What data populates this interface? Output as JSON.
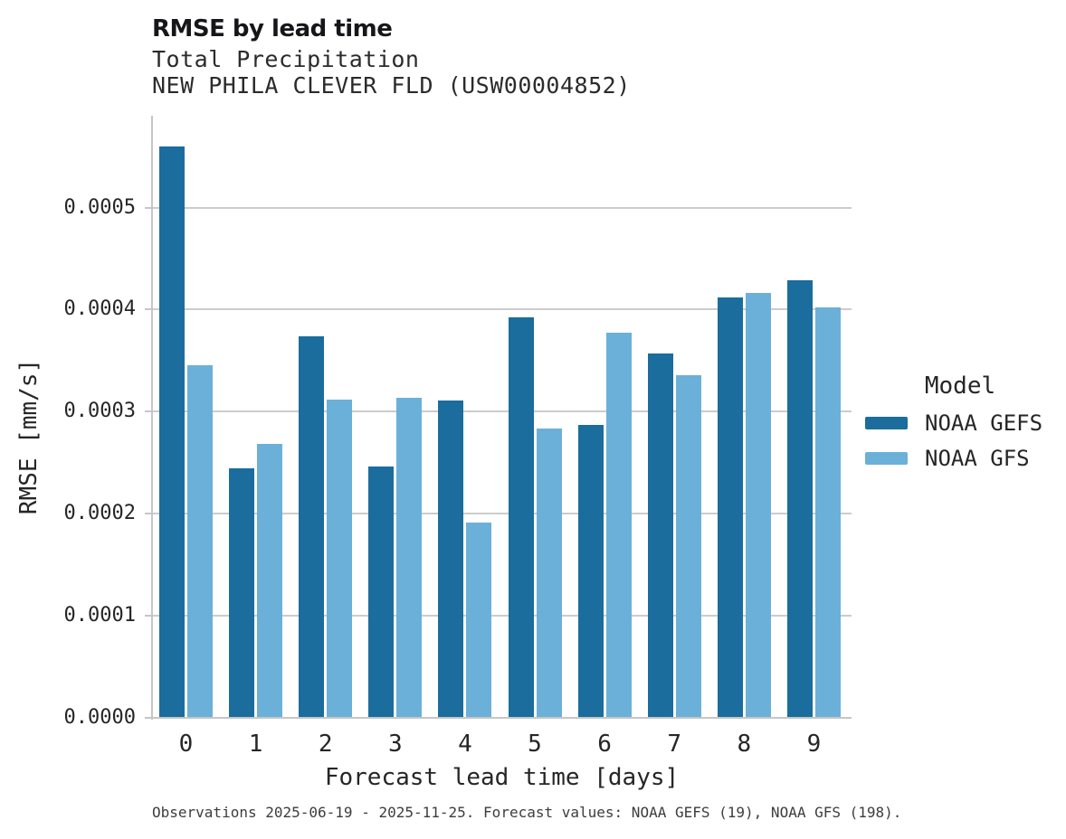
{
  "header": {
    "title": "RMSE by lead time",
    "subtitle_variable": "Total Precipitation",
    "subtitle_station": "NEW PHILA CLEVER FLD (USW00004852)"
  },
  "legend": {
    "title": "Model",
    "entries": [
      {
        "label": "NOAA GEFS",
        "color": "#1a6d9c"
      },
      {
        "label": "NOAA GFS",
        "color": "#6bb0d8"
      }
    ]
  },
  "footer": {
    "note": "Observations 2025-06-19 - 2025-11-25. Forecast values: NOAA GEFS (19), NOAA GFS (198)."
  },
  "chart_data": {
    "type": "bar",
    "title": "RMSE by lead time",
    "subtitle": [
      "Total Precipitation",
      "NEW PHILA CLEVER FLD (USW00004852)"
    ],
    "xlabel": "Forecast lead time [days]",
    "ylabel": "RMSE [mm/s]",
    "categories": [
      "0",
      "1",
      "2",
      "3",
      "4",
      "5",
      "6",
      "7",
      "8",
      "9"
    ],
    "series": [
      {
        "name": "NOAA GEFS",
        "color": "#1a6d9c",
        "values": [
          0.00056,
          0.000244,
          0.000374,
          0.000246,
          0.000311,
          0.000392,
          0.000287,
          0.000357,
          0.000412,
          0.000429
        ]
      },
      {
        "name": "NOAA GFS",
        "color": "#6bb0d8",
        "values": [
          0.000345,
          0.000268,
          0.000312,
          0.000313,
          0.000191,
          0.000283,
          0.000377,
          0.000336,
          0.000416,
          0.000402
        ]
      }
    ],
    "ylim": [
      0,
      0.00059
    ],
    "yticks": [
      0.0,
      0.0001,
      0.0002,
      0.0003,
      0.0004,
      0.0005
    ],
    "ytick_labels": [
      "0.0000",
      "0.0001",
      "0.0002",
      "0.0003",
      "0.0004",
      "0.0005"
    ],
    "grid": "horizontal",
    "gridline_color": "#cccccc",
    "legend_position": "right",
    "legend_title": "Model"
  }
}
